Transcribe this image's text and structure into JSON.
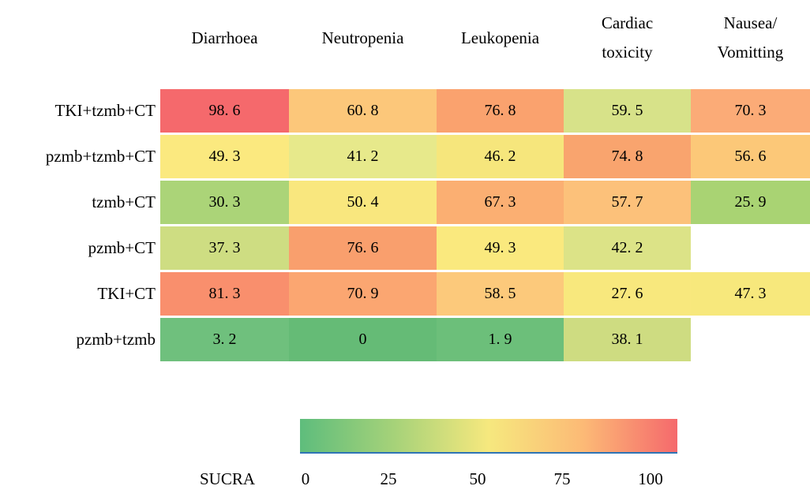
{
  "chart_data": {
    "type": "heatmap",
    "columns": [
      "Diarrhoea",
      "Neutropenia",
      "Leukopenia",
      "Cardiac toxicity",
      "Nausea/Vomitting"
    ],
    "column_lines": [
      [
        "Diarrhoea"
      ],
      [
        "Neutropenia"
      ],
      [
        "Leukopenia"
      ],
      [
        "Cardiac",
        "toxicity"
      ],
      [
        "Nausea/",
        "Vomitting"
      ]
    ],
    "rows": [
      "TKI+tzmb+CT",
      "pzmb+tzmb+CT",
      "tzmb+CT",
      "pzmb+CT",
      "TKI+CT",
      "pzmb+tzmb"
    ],
    "values": [
      [
        98.6,
        60.8,
        76.8,
        59.5,
        70.3
      ],
      [
        49.3,
        41.2,
        46.2,
        74.8,
        56.6
      ],
      [
        30.3,
        50.4,
        67.3,
        57.7,
        25.9
      ],
      [
        37.3,
        76.6,
        49.3,
        42.2,
        null
      ],
      [
        81.3,
        70.9,
        58.5,
        27.6,
        47.3
      ],
      [
        3.2,
        0,
        1.9,
        38.1,
        null
      ]
    ],
    "cell_colors": [
      [
        "#f5696c",
        "#fcc77a",
        "#faa26e",
        "#d7e289",
        "#fbab77"
      ],
      [
        "#fbe97f",
        "#e7e98b",
        "#f6e67c",
        "#f9a46e",
        "#fcc878"
      ],
      [
        "#abd478",
        "#f9e77e",
        "#fbaf72",
        "#fcc17a",
        "#a9d373"
      ],
      [
        "#cedd82",
        "#f99f6d",
        "#fae97e",
        "#dce387",
        null
      ],
      [
        "#f98f6d",
        "#fba671",
        "#fcc97b",
        "#f8e87d",
        "#f7e87c"
      ],
      [
        "#6fc07d",
        "#65bb76",
        "#6cbf7a",
        "#cedc81",
        null
      ]
    ],
    "colorbar": {
      "label": "SUCRA",
      "ticks": [
        "0",
        "25",
        "50",
        "75",
        "100"
      ],
      "range": [
        0,
        100
      ],
      "gradient": [
        "#5ebd7c",
        "#a6d279",
        "#f6e87e",
        "#fcba76",
        "#f5696c"
      ],
      "underline_color": "#2e74b5"
    },
    "value_range": [
      0,
      100
    ],
    "missing_cells": [
      [
        3,
        4
      ],
      [
        5,
        4
      ]
    ]
  }
}
